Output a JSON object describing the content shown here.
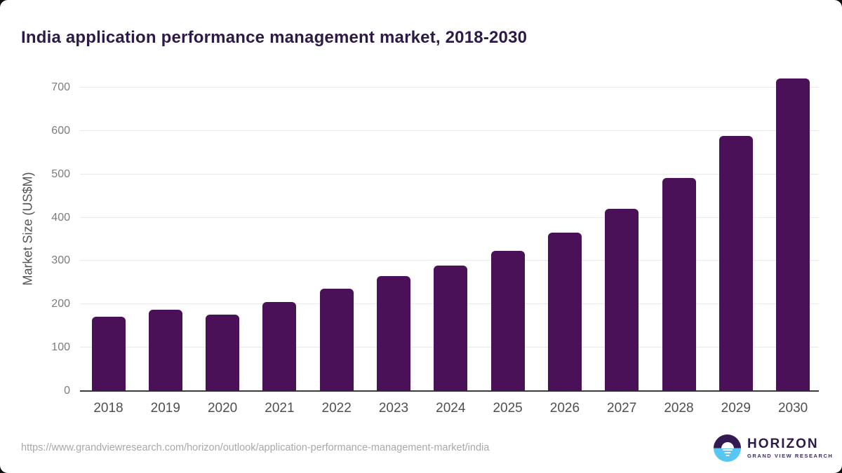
{
  "header": {
    "title": "India application performance management market, 2018-2030"
  },
  "footer": {
    "source_url": "https://www.grandviewresearch.com/horizon/outlook/application-performance-management-market/india",
    "logo": {
      "name": "HORIZON",
      "subtitle": "GRAND VIEW RESEARCH"
    }
  },
  "chart_data": {
    "type": "bar",
    "title": "India application performance management market, 2018-2030",
    "categories": [
      "2018",
      "2019",
      "2020",
      "2021",
      "2022",
      "2023",
      "2024",
      "2025",
      "2026",
      "2027",
      "2028",
      "2029",
      "2030"
    ],
    "values": [
      172,
      187,
      176,
      205,
      236,
      265,
      290,
      323,
      365,
      420,
      492,
      588,
      721
    ],
    "xlabel": "",
    "ylabel": "Market Size (US$M)",
    "ylim": [
      0,
      750
    ],
    "yticks": [
      0,
      100,
      200,
      300,
      400,
      500,
      600,
      700
    ],
    "grid": true,
    "legend": false,
    "bar_color": "#4a1158",
    "colors": {
      "title_text": "#2e1a47",
      "gridline": "#e9e9ea",
      "baseline": "#3c3c3c",
      "y_tick_text": "#7c7c7c",
      "x_tick_text": "#4f4f4f",
      "y_axis_label_text": "#555555",
      "source_url_text": "#a8a8a8",
      "logo_top": "#331a52",
      "logo_bottom": "#58c6f2"
    }
  }
}
